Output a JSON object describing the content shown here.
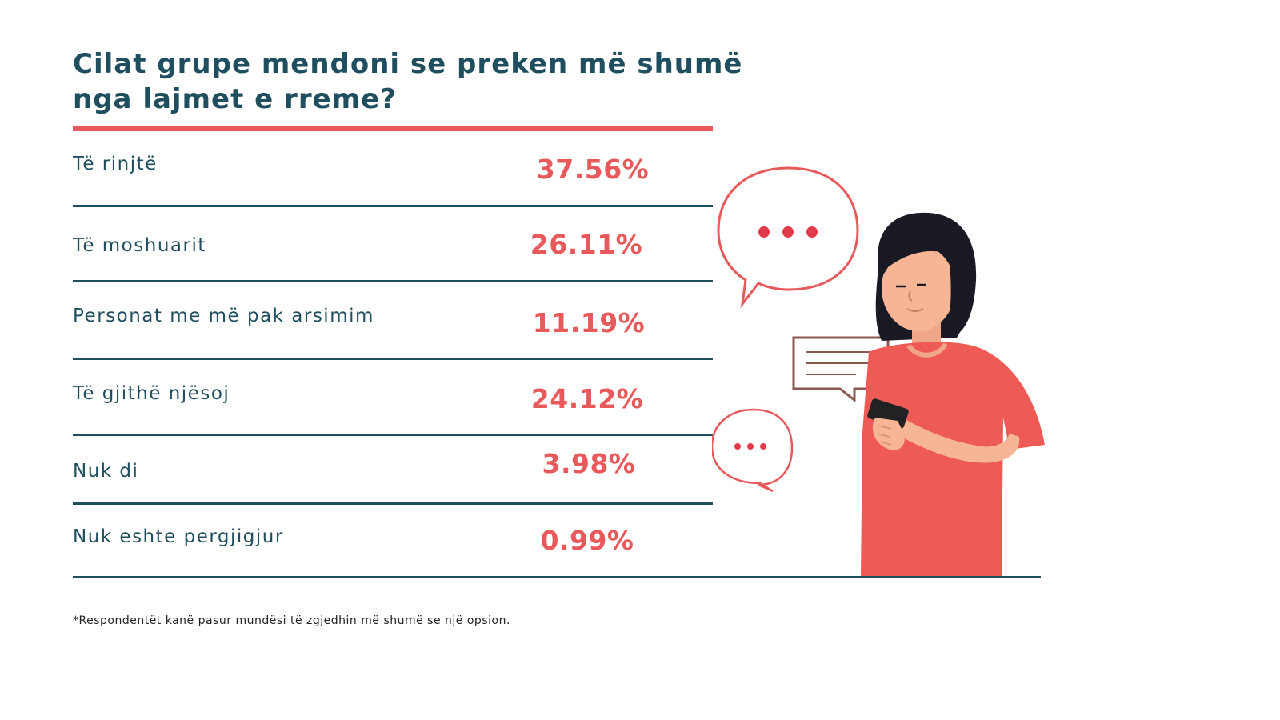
{
  "title": "Cilat grupe mendoni se preken më shumë nga lajmet e rreme?",
  "footnote": "*Respondentët kanë pasur mundësi të zgjedhin më shumë se një opsion.",
  "colors": {
    "heading": "#1f4e5f",
    "accent": "#e8595b"
  },
  "chart_data": {
    "type": "table",
    "title": "Cilat grupe mendoni se preken më shumë nga lajmet e rreme?",
    "unit": "%",
    "categories": [
      "Të rinjtë",
      "Të moshuarit",
      "Personat me më pak arsimim",
      "Të gjithë njësoj",
      "Nuk di",
      "Nuk eshte pergjigjur"
    ],
    "values": [
      37.56,
      26.11,
      11.19,
      24.12,
      3.98,
      0.99
    ],
    "value_labels": [
      "37.56%",
      "26.11%",
      "11.19%",
      "24.12%",
      "3.98%",
      "0.99%"
    ]
  }
}
